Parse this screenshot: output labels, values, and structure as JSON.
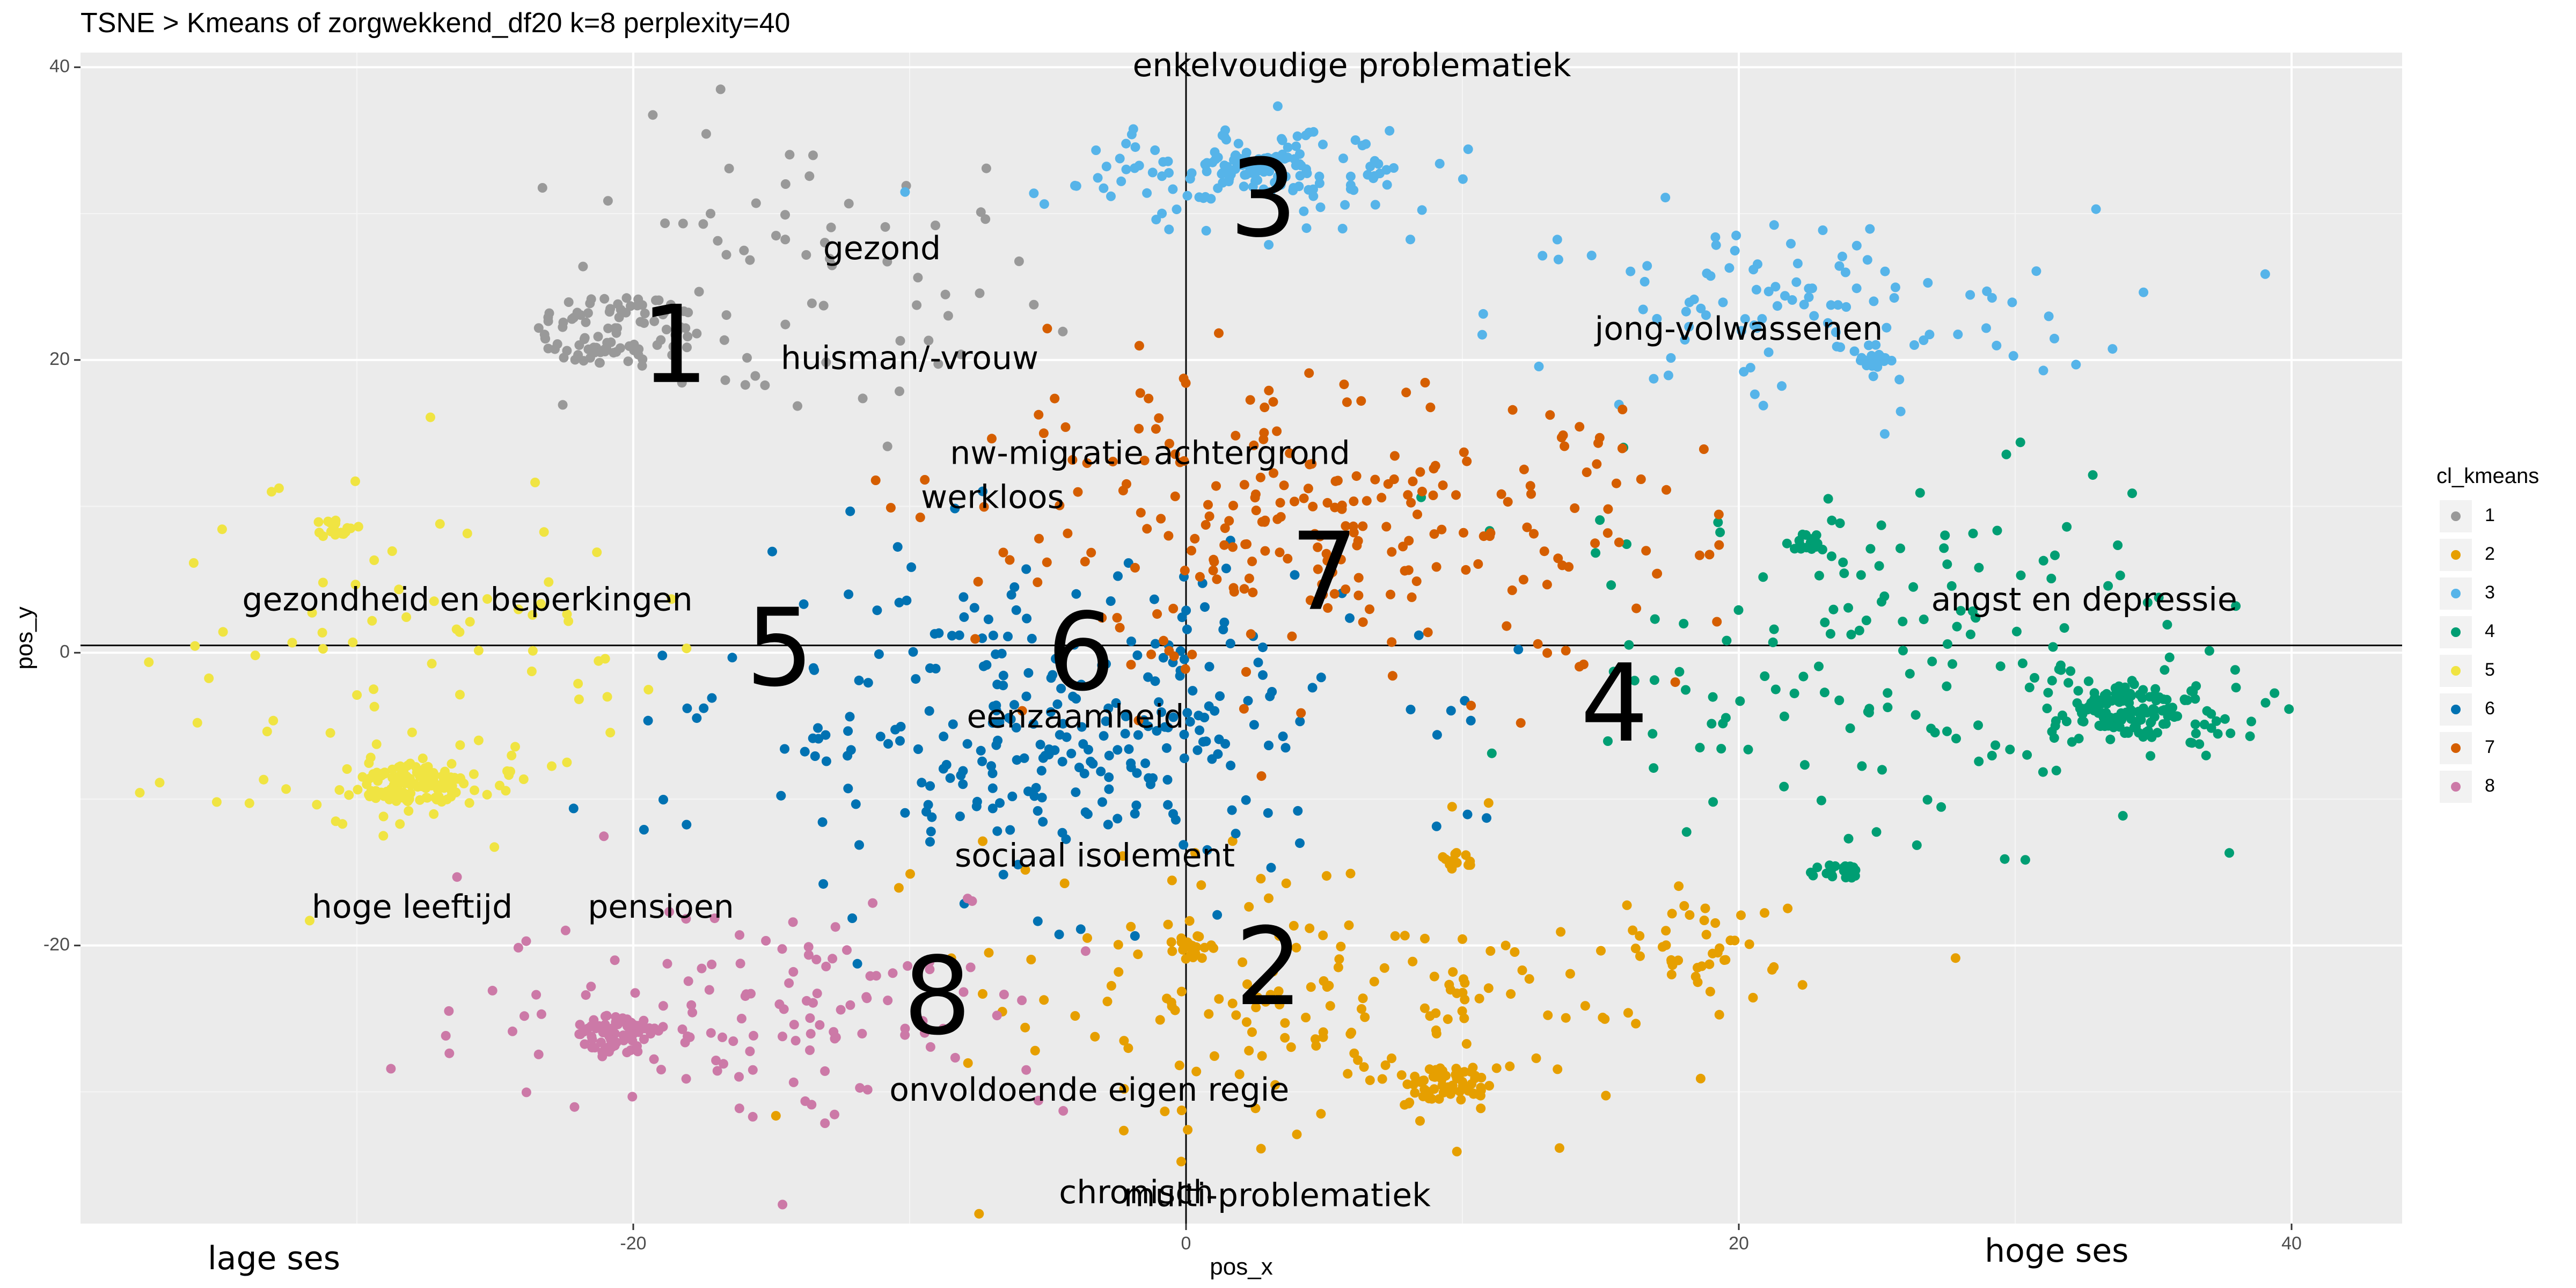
{
  "chart_data": {
    "type": "scatter",
    "title": "TSNE > Kmeans of zorgwekkend_df20 k=8 perplexity=40",
    "xlabel": "pos_x",
    "ylabel": "pos_y",
    "xlim": [
      -40,
      44
    ],
    "ylim": [
      -39,
      41
    ],
    "x_ticks": [
      -20,
      0,
      20,
      40
    ],
    "y_ticks": [
      -20,
      0,
      20,
      40
    ],
    "grid": true,
    "legend_title": "cl_kmeans",
    "legend_position": "right",
    "series": [
      {
        "name": "1",
        "color": "#999999",
        "clusters": [
          {
            "cx": -20.5,
            "cy": 22,
            "rx": 3,
            "ry": 2.5,
            "n": 90,
            "dense": true
          },
          {
            "cx": -14,
            "cy": 25,
            "rx": 10,
            "ry": 12,
            "n": 70,
            "dense": false
          }
        ]
      },
      {
        "name": "2",
        "color": "#E69F00",
        "clusters": [
          {
            "cx": 0.3,
            "cy": -20,
            "rx": 1,
            "ry": 1,
            "n": 20,
            "dense": true
          },
          {
            "cx": 9.5,
            "cy": -29.5,
            "rx": 1.5,
            "ry": 1.2,
            "n": 55,
            "dense": true
          },
          {
            "cx": 9.8,
            "cy": -14.2,
            "rx": 0.6,
            "ry": 0.6,
            "n": 12,
            "dense": true
          },
          {
            "cx": 5,
            "cy": -24,
            "rx": 13,
            "ry": 11,
            "n": 180,
            "dense": false
          },
          {
            "cx": 19,
            "cy": -20,
            "rx": 6,
            "ry": 5,
            "n": 40,
            "dense": false
          }
        ]
      },
      {
        "name": "3",
        "color": "#56B4E9",
        "clusters": [
          {
            "cx": 2.5,
            "cy": 33,
            "rx": 2,
            "ry": 1.2,
            "n": 60,
            "dense": true
          },
          {
            "cx": 2.5,
            "cy": 33,
            "rx": 7,
            "ry": 4,
            "n": 120,
            "dense": false
          },
          {
            "cx": 25,
            "cy": 20,
            "rx": 0.6,
            "ry": 0.5,
            "n": 15,
            "dense": true
          },
          {
            "cx": 22,
            "cy": 23,
            "rx": 12,
            "ry": 8,
            "n": 110,
            "dense": false
          }
        ]
      },
      {
        "name": "4",
        "color": "#009E73",
        "clusters": [
          {
            "cx": 34,
            "cy": -4,
            "rx": 2,
            "ry": 1.3,
            "n": 80,
            "dense": true
          },
          {
            "cx": 34,
            "cy": -4,
            "rx": 5.5,
            "ry": 3.5,
            "n": 80,
            "dense": false
          },
          {
            "cx": 22.5,
            "cy": 7.5,
            "rx": 0.8,
            "ry": 0.6,
            "n": 20,
            "dense": true
          },
          {
            "cx": 23.5,
            "cy": -15,
            "rx": 1,
            "ry": 0.5,
            "n": 25,
            "dense": true
          },
          {
            "cx": 25,
            "cy": 0,
            "rx": 14,
            "ry": 14,
            "n": 150,
            "dense": false
          }
        ]
      },
      {
        "name": "5",
        "color": "#F0E442",
        "clusters": [
          {
            "cx": -28,
            "cy": -9,
            "rx": 2,
            "ry": 1.3,
            "n": 90,
            "dense": true
          },
          {
            "cx": -28,
            "cy": -9,
            "rx": 5,
            "ry": 3.5,
            "n": 60,
            "dense": false
          },
          {
            "cx": -31,
            "cy": 8.5,
            "rx": 0.8,
            "ry": 0.6,
            "n": 20,
            "dense": true
          },
          {
            "cx": -28,
            "cy": 2,
            "rx": 10,
            "ry": 12,
            "n": 70,
            "dense": false
          }
        ]
      },
      {
        "name": "6",
        "color": "#0072B2",
        "clusters": [
          {
            "cx": -5,
            "cy": -5,
            "rx": 13,
            "ry": 12,
            "n": 300,
            "dense": false
          }
        ]
      },
      {
        "name": "7",
        "color": "#D55E00",
        "clusters": [
          {
            "cx": 5,
            "cy": 8,
            "rx": 15,
            "ry": 11,
            "n": 260,
            "dense": false
          }
        ]
      },
      {
        "name": "8",
        "color": "#CC79A7",
        "clusters": [
          {
            "cx": -20.5,
            "cy": -26,
            "rx": 1.6,
            "ry": 1.4,
            "n": 70,
            "dense": true
          },
          {
            "cx": -15,
            "cy": -24,
            "rx": 12,
            "ry": 9,
            "n": 130,
            "dense": false
          }
        ]
      }
    ],
    "annotations": [
      {
        "text": "gezond",
        "x": -11,
        "y": 27.5,
        "size": "small"
      },
      {
        "text": "huisman/-vrouw",
        "x": -10,
        "y": 20,
        "size": "small"
      },
      {
        "text": "nw-migratie achtergrond",
        "x": -1.3,
        "y": 13.5,
        "size": "small"
      },
      {
        "text": "werkloos",
        "x": -7,
        "y": 10.5,
        "size": "small"
      },
      {
        "text": "gezondheid en beperkingen",
        "x": -26,
        "y": 3.5,
        "size": "small"
      },
      {
        "text": "eenzaamheid",
        "x": -4,
        "y": -4.5,
        "size": "small"
      },
      {
        "text": "sociaal isolement",
        "x": -3.3,
        "y": -14,
        "size": "small"
      },
      {
        "text": "hoge leeftijd",
        "x": -28,
        "y": -17.5,
        "size": "small"
      },
      {
        "text": "pensioen",
        "x": -19,
        "y": -17.5,
        "size": "small"
      },
      {
        "text": "onvoldoende eigen regie",
        "x": -3.5,
        "y": -30,
        "size": "small"
      },
      {
        "text": "chronisch",
        "x": -1.8,
        "y": -37,
        "size": "small"
      },
      {
        "text": "multi-problematiek",
        "x": 3.3,
        "y": -37.2,
        "size": "small"
      },
      {
        "text": "enkelvoudige problematiek",
        "x": 6,
        "y": 40,
        "size": "small"
      },
      {
        "text": "jong-volwassenen",
        "x": 20,
        "y": 22,
        "size": "small"
      },
      {
        "text": "angst en depressie",
        "x": 32.5,
        "y": 3.5,
        "size": "small"
      },
      {
        "text": "lage ses",
        "x": -33,
        "y": -41.5,
        "size": "small"
      },
      {
        "text": "hoge ses",
        "x": 31.5,
        "y": -41,
        "size": "small"
      },
      {
        "text": "1",
        "x": -18.5,
        "y": 20.5,
        "size": "big"
      },
      {
        "text": "3",
        "x": 2.8,
        "y": 30.5,
        "size": "big"
      },
      {
        "text": "7",
        "x": 5,
        "y": 5,
        "size": "big"
      },
      {
        "text": "5",
        "x": -14.7,
        "y": -0.2,
        "size": "big"
      },
      {
        "text": "6",
        "x": -3.8,
        "y": -0.5,
        "size": "big"
      },
      {
        "text": "4",
        "x": 15.5,
        "y": -4,
        "size": "big"
      },
      {
        "text": "2",
        "x": 3,
        "y": -22,
        "size": "big"
      },
      {
        "text": "8",
        "x": -9,
        "y": -24,
        "size": "big"
      }
    ]
  }
}
